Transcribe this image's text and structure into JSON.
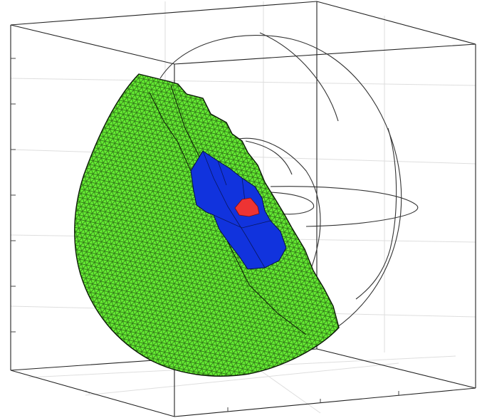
{
  "figure": {
    "type": "3d-mesh-section",
    "colors": {
      "background": "#ffffff",
      "box_edge": "#222222",
      "grid": "#d9d9d9",
      "outer_region": "#66ee33",
      "middle_region": "#1133dd",
      "inner_region": "#ee3333",
      "mesh_edge": "#0b1a06",
      "wire": "#333333"
    },
    "regions": [
      "outer-shell",
      "middle-layer",
      "core"
    ]
  }
}
